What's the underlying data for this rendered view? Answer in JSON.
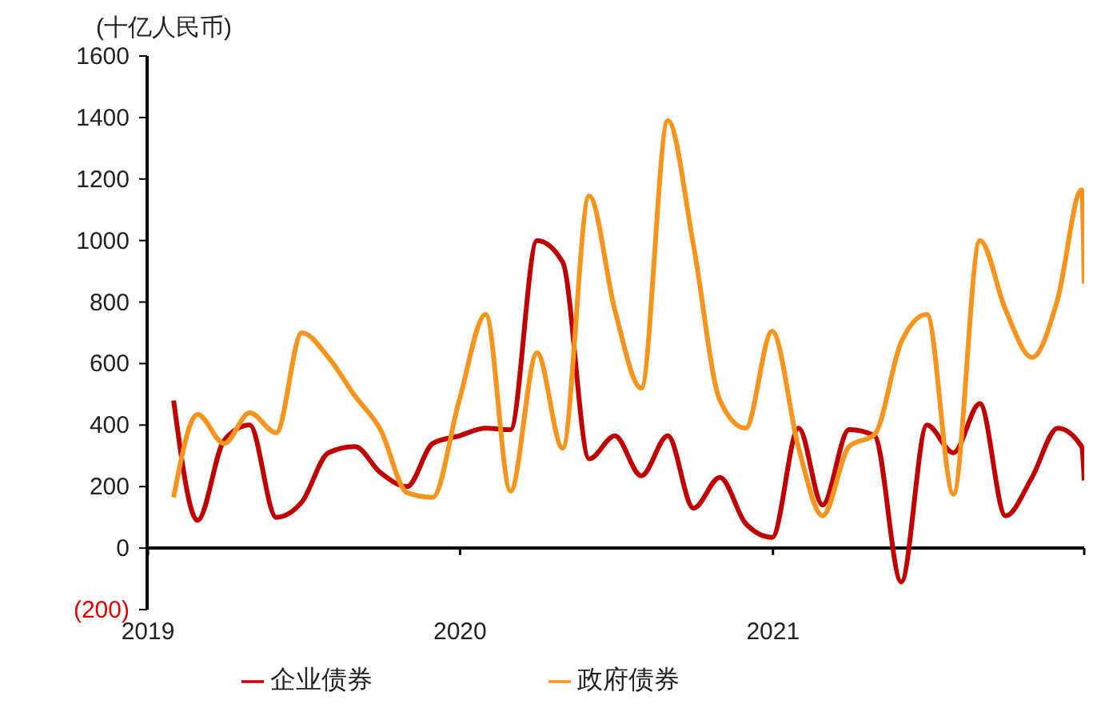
{
  "chart_data": {
    "type": "line",
    "ylabel": "(十亿人民币)",
    "x": [
      "2019-01-31",
      "2019-02-28",
      "2019-03-31",
      "2019-04-30",
      "2019-05-31",
      "2019-06-30",
      "2019-07-31",
      "2019-08-31",
      "2019-09-30",
      "2019-10-31",
      "2019-11-30",
      "2019-12-31",
      "2020-01-31",
      "2020-02-29",
      "2020-03-31",
      "2020-04-30",
      "2020-05-31",
      "2020-06-30",
      "2020-07-31",
      "2020-08-31",
      "2020-09-30",
      "2020-10-31",
      "2020-11-30",
      "2020-12-31",
      "2021-01-31",
      "2021-02-28",
      "2021-03-31",
      "2021-04-30",
      "2021-05-31",
      "2021-06-30",
      "2021-07-31",
      "2021-08-31",
      "2021-09-30",
      "2021-10-31",
      "2021-11-30",
      "2021-12-28",
      "2021-12-31"
    ],
    "series": [
      {
        "name": "企业债券",
        "color": "#c00000",
        "values": [
          480,
          90,
          350,
          400,
          100,
          150,
          310,
          330,
          245,
          200,
          340,
          365,
          390,
          385,
          1000,
          930,
          290,
          365,
          235,
          365,
          130,
          230,
          80,
          35,
          390,
          140,
          385,
          365,
          -110,
          400,
          310,
          470,
          105,
          230,
          390,
          330,
          220
        ]
      },
      {
        "name": "政府债券",
        "color": "#f7941d",
        "values": [
          165,
          435,
          340,
          440,
          375,
          700,
          620,
          495,
          385,
          180,
          165,
          480,
          760,
          185,
          635,
          325,
          1145,
          775,
          520,
          1390,
          985,
          480,
          390,
          705,
          325,
          105,
          330,
          370,
          670,
          760,
          175,
          1000,
          775,
          620,
          810,
          1165,
          860
        ]
      }
    ],
    "xlim": [
      "2018-12-31",
      "2021-12-31"
    ],
    "xticks": [
      {
        "value": "2019",
        "label": "2019"
      },
      {
        "value": "2020",
        "label": "2020"
      },
      {
        "value": "2021",
        "label": "2021"
      }
    ],
    "ylim": [
      -200,
      1600
    ],
    "yticks": [
      {
        "value": -200,
        "label": "(200)"
      },
      0,
      200,
      400,
      600,
      800,
      1000,
      1200,
      1400,
      1600
    ],
    "ref_lines": [
      {
        "axis": "y",
        "value": 0,
        "color": "#000000"
      }
    ],
    "grid": false,
    "legend": "bottom",
    "marker": "none",
    "line_style": "solid"
  }
}
